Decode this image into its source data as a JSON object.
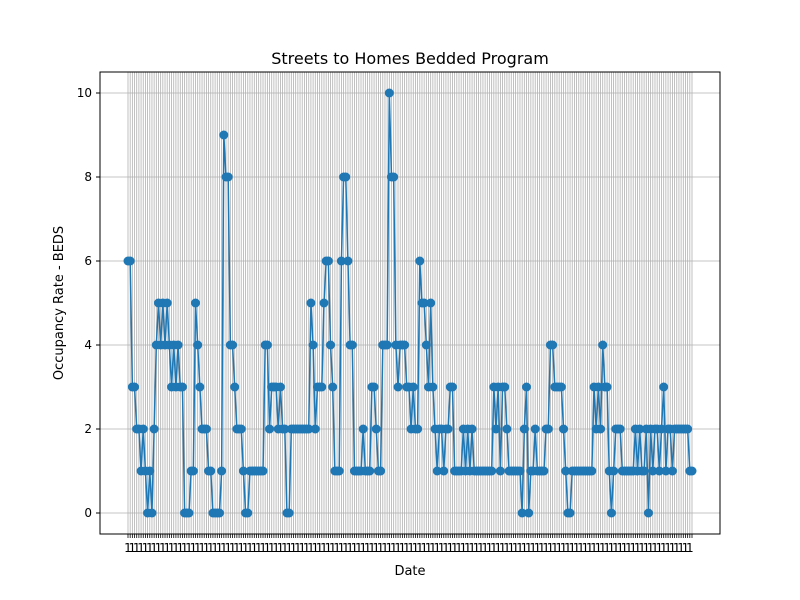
{
  "chart_data": {
    "type": "line",
    "title": "Streets to Homes Bedded Program",
    "xlabel": "Date",
    "ylabel": "Occupancy Rate - BEDS",
    "ylim": [
      -0.5,
      10.5
    ],
    "yticks": [
      0,
      2,
      4,
      6,
      8,
      10
    ],
    "grid": true,
    "marker": "circle",
    "color": "#1f77b4",
    "x_tick_text": "1",
    "series": [
      {
        "values": [
          6,
          6,
          3,
          3,
          2,
          2,
          1,
          2,
          1,
          0,
          1,
          0,
          2,
          4,
          5,
          4,
          5,
          4,
          5,
          4,
          3,
          4,
          3,
          4,
          3,
          3,
          0,
          0,
          0,
          1,
          1,
          5,
          4,
          3,
          2,
          2,
          2,
          1,
          1,
          0,
          0,
          0,
          0,
          1,
          9,
          8,
          8,
          4,
          4,
          3,
          2,
          2,
          2,
          1,
          0,
          0,
          1,
          1,
          1,
          1,
          1,
          1,
          1,
          4,
          4,
          2,
          3,
          3,
          3,
          2,
          3,
          2,
          2,
          0,
          0,
          2,
          2,
          2,
          2,
          2,
          2,
          2,
          2,
          2,
          5,
          4,
          2,
          3,
          3,
          3,
          5,
          6,
          6,
          4,
          3,
          1,
          1,
          1,
          6,
          8,
          8,
          6,
          4,
          4,
          1,
          1,
          1,
          1,
          2,
          1,
          1,
          1,
          3,
          3,
          2,
          1,
          1,
          4,
          4,
          4,
          10,
          8,
          8,
          4,
          3,
          4,
          4,
          4,
          3,
          3,
          2,
          3,
          2,
          2,
          6,
          5,
          5,
          4,
          3,
          5,
          3,
          2,
          1,
          2,
          2,
          1,
          2,
          2,
          3,
          3,
          1,
          1,
          1,
          1,
          2,
          1,
          2,
          1,
          2,
          1,
          1,
          1,
          1,
          1,
          1,
          1,
          1,
          1,
          3,
          2,
          3,
          1,
          3,
          3,
          2,
          1,
          1,
          1,
          1,
          1,
          1,
          0,
          2,
          3,
          0,
          1,
          1,
          2,
          1,
          1,
          1,
          1,
          2,
          2,
          4,
          4,
          3,
          3,
          3,
          3,
          2,
          1,
          0,
          0,
          1,
          1,
          1,
          1,
          1,
          1,
          1,
          1,
          1,
          1,
          3,
          2,
          3,
          2,
          4,
          3,
          3,
          1,
          0,
          1,
          2,
          2,
          2,
          1,
          1,
          1,
          1,
          1,
          1,
          2,
          1,
          2,
          1,
          1,
          2,
          0,
          2,
          1,
          2,
          2,
          1,
          2,
          3,
          1,
          2,
          2,
          1,
          2,
          2,
          2,
          2,
          2,
          2,
          2,
          1,
          1
        ]
      }
    ]
  }
}
